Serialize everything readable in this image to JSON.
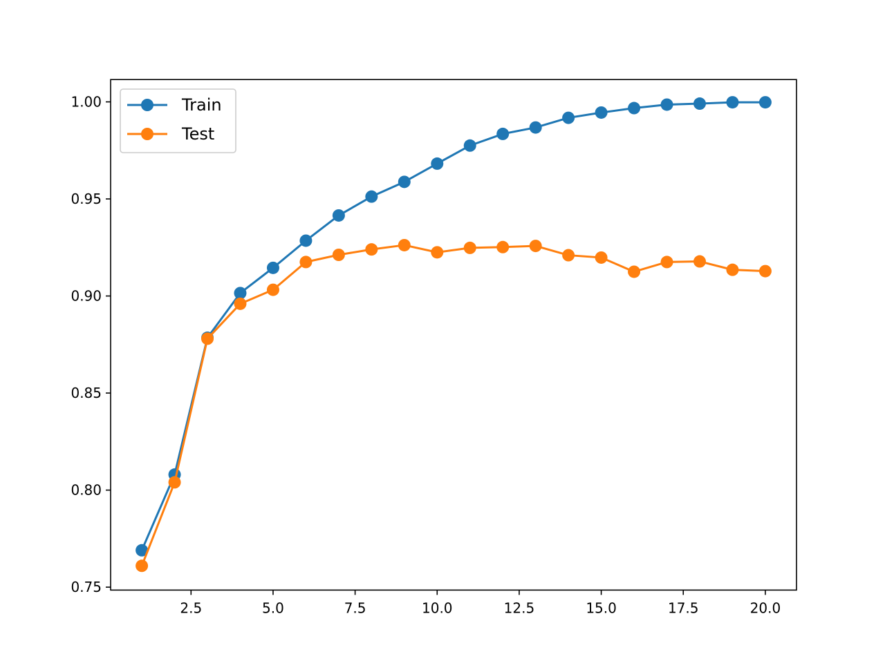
{
  "chart_data": {
    "type": "line",
    "title": "",
    "xlabel": "",
    "ylabel": "",
    "xlim": [
      0.05,
      20.95
    ],
    "ylim": [
      0.7485,
      1.0115
    ],
    "x_ticks": [
      2.5,
      5.0,
      7.5,
      10.0,
      12.5,
      15.0,
      17.5,
      20.0
    ],
    "x_tick_labels": [
      "2.5",
      "5.0",
      "7.5",
      "10.0",
      "12.5",
      "15.0",
      "17.5",
      "20.0"
    ],
    "y_ticks": [
      0.75,
      0.8,
      0.85,
      0.9,
      0.95,
      1.0
    ],
    "y_tick_labels": [
      "0.75",
      "0.80",
      "0.85",
      "0.90",
      "0.95",
      "1.00"
    ],
    "grid": false,
    "legend_position": "upper-left",
    "x": [
      1,
      2,
      3,
      4,
      5,
      6,
      7,
      8,
      9,
      10,
      11,
      12,
      13,
      14,
      15,
      16,
      17,
      18,
      19,
      20
    ],
    "series": [
      {
        "name": "Train",
        "color": "#1f77b4",
        "marker": "circle",
        "values": [
          0.769,
          0.808,
          0.8785,
          0.9015,
          0.9145,
          0.9285,
          0.9415,
          0.9512,
          0.9588,
          0.9682,
          0.9775,
          0.9835,
          0.9868,
          0.9918,
          0.9945,
          0.9968,
          0.9986,
          0.9991,
          0.9998,
          0.9998
        ]
      },
      {
        "name": "Test",
        "color": "#ff7f0e",
        "marker": "circle",
        "values": [
          0.761,
          0.804,
          0.878,
          0.896,
          0.9032,
          0.9175,
          0.9212,
          0.924,
          0.9262,
          0.9225,
          0.9248,
          0.9252,
          0.9258,
          0.921,
          0.9198,
          0.9125,
          0.9175,
          0.9178,
          0.9135,
          0.9128
        ]
      }
    ]
  }
}
